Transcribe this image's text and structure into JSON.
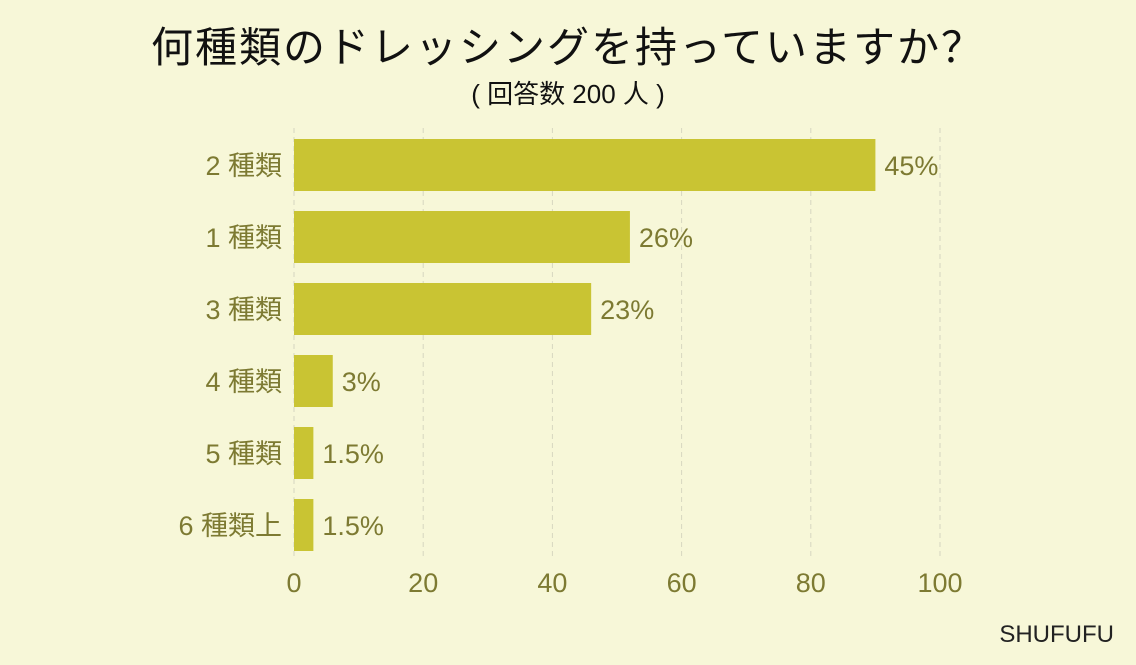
{
  "chart_data": {
    "type": "bar",
    "orientation": "horizontal",
    "title": "何種類のドレッシングを持っていますか？",
    "subtitle": "( 回答数 200 人 )",
    "categories": [
      "2 種類",
      "1 種類",
      "3 種類",
      "4 種類",
      "5 種類",
      "6 種類上"
    ],
    "values": [
      90,
      52,
      46,
      6,
      3,
      3
    ],
    "data_labels": [
      "45%",
      "26%",
      "23%",
      "3%",
      "1.5%",
      "1.5%"
    ],
    "xlim": [
      0,
      100
    ],
    "xticks": [
      "0",
      "20",
      "40",
      "60",
      "80",
      "100"
    ],
    "grid": true,
    "bar_color": "#c9c433",
    "label_color": "#7d7a32"
  },
  "footer": {
    "brand": "SHUFUFU"
  }
}
